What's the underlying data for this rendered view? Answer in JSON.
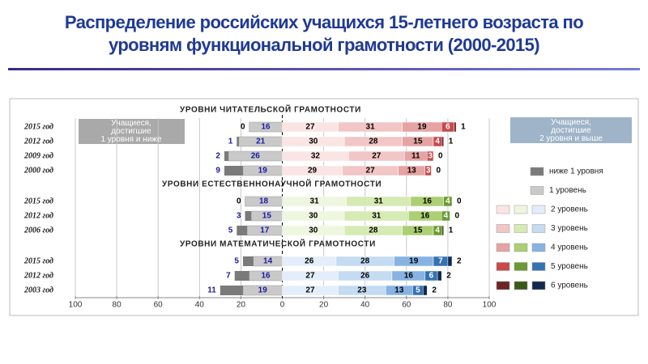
{
  "chart_data": {
    "type": "diverging-bar",
    "title": "Распределение российских учащихся 15-летнего возраста  по уровням функциональной грамотности (2000-2015)",
    "annotations": [
      "Учащиеся, достигшие 1 уровня и ниже",
      "Учащиеся, достигшие 2 уровня и выше"
    ],
    "xlim": [
      -100,
      100
    ],
    "xticks": [
      {
        "value": -100,
        "label": "100"
      },
      {
        "value": -80,
        "label": "80"
      },
      {
        "value": -60,
        "label": "60"
      },
      {
        "value": -40,
        "label": "40"
      },
      {
        "value": -20,
        "label": "20"
      },
      0,
      20,
      40,
      60,
      80,
      100
    ],
    "grid": true,
    "series": [
      {
        "name": "ниже 1 уровня",
        "colors": [
          "#7a7a7a"
        ]
      },
      {
        "name": "1 уровень",
        "colors": [
          "#c9c9c9"
        ]
      },
      {
        "name": "2 уровень",
        "colors": [
          "#fbe4e4",
          "#eef6df",
          "#e3eefa"
        ]
      },
      {
        "name": "3 уровень",
        "colors": [
          "#f2c6c6",
          "#d6eab3",
          "#c4dbf2"
        ]
      },
      {
        "name": "4 уровень",
        "colors": [
          "#e6a3a3",
          "#abcf72",
          "#86b3e2"
        ]
      },
      {
        "name": "5 уровень",
        "colors": [
          "#c84a4a",
          "#6b9b32",
          "#3572b2"
        ]
      },
      {
        "name": "6 уровень",
        "colors": [
          "#6e2424",
          "#3b5a18",
          "#12294f"
        ]
      }
    ],
    "groups": [
      {
        "title": "УРОВНИ ЧИТАТЕЛЬСКОЙ ГРАМОТНОСТИ",
        "categories": [
          "2015 год",
          "2012 год",
          "2009 год",
          "2000 год"
        ],
        "values": [
          [
            0,
            16,
            27,
            31,
            19,
            6,
            1
          ],
          [
            1,
            21,
            30,
            28,
            15,
            4,
            1
          ],
          [
            2,
            26,
            32,
            27,
            11,
            3,
            0
          ],
          [
            9,
            19,
            29,
            27,
            13,
            3,
            0
          ]
        ]
      },
      {
        "title": "УРОВНИ ЕСТЕСТВЕННОНАУЧНОЙ ГРАМОТНОСТИ",
        "categories": [
          "2015 год",
          "2012 год",
          "2006 год"
        ],
        "values": [
          [
            0,
            18,
            31,
            31,
            16,
            4,
            0
          ],
          [
            3,
            15,
            30,
            31,
            16,
            4,
            0
          ],
          [
            5,
            17,
            30,
            28,
            15,
            4,
            1
          ]
        ]
      },
      {
        "title": "УРОВНИ МАТЕМАТИЧЕСКОЙ ГРАМОТНОСТИ",
        "categories": [
          "2015 год",
          "2012 год",
          "2003 год"
        ],
        "values": [
          [
            5,
            14,
            26,
            28,
            19,
            7,
            2
          ],
          [
            7,
            16,
            27,
            26,
            16,
            6,
            2
          ],
          [
            11,
            19,
            27,
            23,
            13,
            5,
            2
          ]
        ]
      }
    ]
  }
}
